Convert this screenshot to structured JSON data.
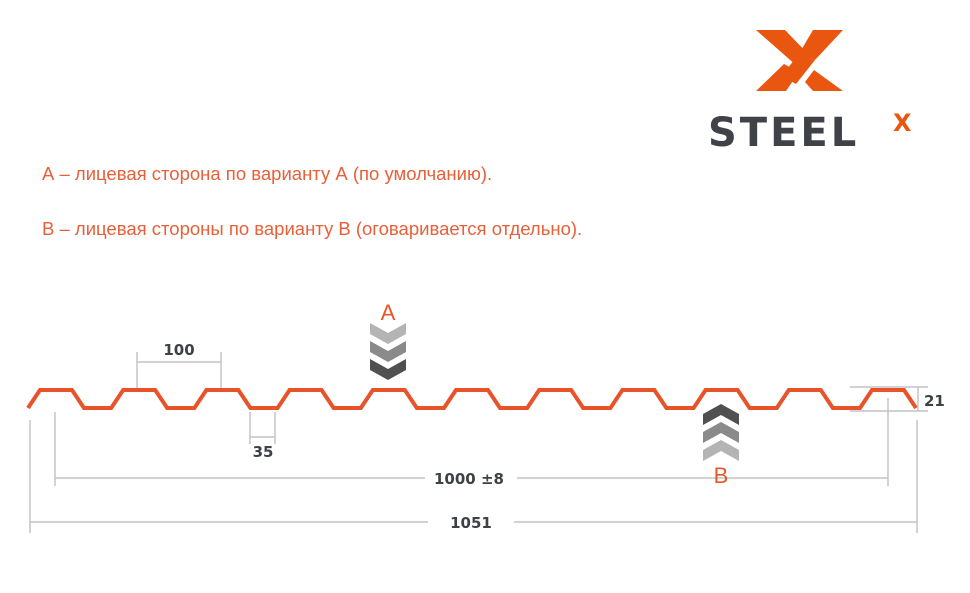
{
  "logo": {
    "text": "STEELX",
    "word": "STEEL",
    "mark": "X",
    "colors": {
      "orange": "#e8560f",
      "gray": "#3f4247"
    }
  },
  "legend": {
    "line_a": "А – лицевая сторона по варианту А (по умолчанию).",
    "line_b": "В – лицевая стороны по варианту В (оговаривается отдельно)."
  },
  "diagram": {
    "profile_color": "#e8532a",
    "side_a": "A",
    "side_b": "B",
    "dimensions": {
      "pitch": "100",
      "trough": "35",
      "height": "21",
      "useful_width": "1000 ±8",
      "total_width": "1051"
    },
    "chevron_colors": [
      "#b4b4b4",
      "#8a8a8a",
      "#505050"
    ]
  }
}
